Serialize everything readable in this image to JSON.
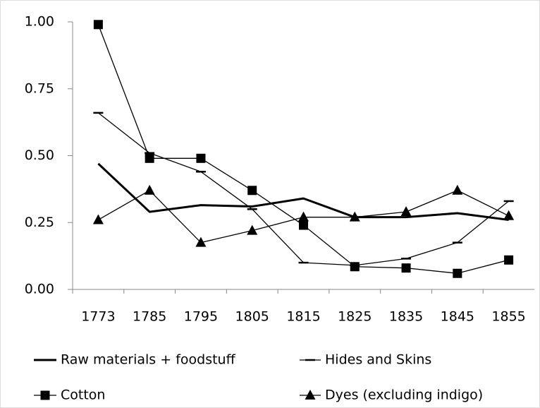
{
  "chart_data": {
    "type": "line",
    "categories": [
      "1773",
      "1785",
      "1795",
      "1805",
      "1815",
      "1825",
      "1835",
      "1845",
      "1855"
    ],
    "series": [
      {
        "name": "Raw materials + foodstuff",
        "color": "#000000",
        "marker": "none",
        "line_width": 3,
        "values": [
          0.47,
          0.29,
          0.315,
          0.31,
          0.34,
          0.27,
          0.27,
          0.285,
          0.26
        ]
      },
      {
        "name": "Hides and Skins",
        "color": "#000000",
        "marker": "dash",
        "line_width": 1.3,
        "values": [
          0.66,
          0.51,
          0.44,
          0.3,
          0.1,
          0.09,
          0.115,
          0.175,
          0.33
        ]
      },
      {
        "name": "Cotton",
        "color": "#000000",
        "marker": "square",
        "line_width": 1.3,
        "values": [
          0.99,
          0.49,
          0.49,
          0.37,
          0.24,
          0.085,
          0.08,
          0.06,
          0.11
        ]
      },
      {
        "name": "Dyes (excluding indigo)",
        "color": "#000000",
        "marker": "triangle",
        "line_width": 1.3,
        "values": [
          0.26,
          0.37,
          0.175,
          0.22,
          0.27,
          0.27,
          0.29,
          0.37,
          0.275
        ]
      }
    ],
    "ylim": [
      0,
      1
    ],
    "yticks": [
      {
        "value": 0,
        "label": "0.00"
      },
      {
        "value": 0.25,
        "label": "0.25"
      },
      {
        "value": 0.5,
        "label": "0.50"
      },
      {
        "value": 0.75,
        "label": "0.75"
      },
      {
        "value": 1,
        "label": "1.00"
      }
    ],
    "grid": false,
    "legend": "bottom"
  }
}
